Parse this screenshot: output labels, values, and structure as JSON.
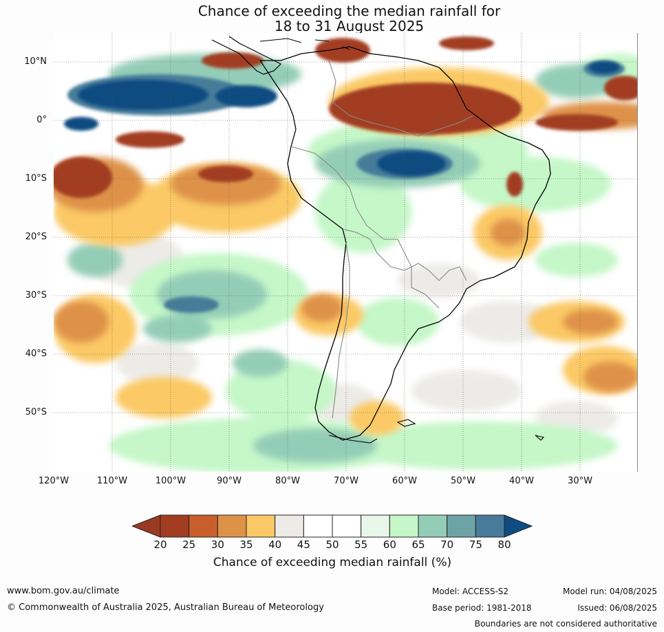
{
  "title": {
    "line1": "Chance of exceeding the median rainfall for",
    "line2": "18 to 31 August 2025"
  },
  "map": {
    "region": "South America and surrounding oceans",
    "latitude_labels": [
      "10°N",
      "0°",
      "10°S",
      "20°S",
      "30°S",
      "40°S",
      "50°S"
    ],
    "longitude_labels": [
      "120°W",
      "110°W",
      "100°W",
      "90°W",
      "80°W",
      "70°W",
      "60°W",
      "50°W",
      "40°W",
      "30°W"
    ],
    "lon_range": [
      -120,
      -20
    ],
    "lat_range": [
      -60,
      15
    ],
    "gridlines": true
  },
  "colorbar": {
    "title": "Chance of exceeding median rainfall (%)",
    "ticks": [
      "20",
      "25",
      "30",
      "35",
      "40",
      "45",
      "50",
      "55",
      "60",
      "65",
      "70",
      "75",
      "80"
    ],
    "colors": [
      "#a23d21",
      "#c9602c",
      "#de9248",
      "#fbc965",
      "#ecebe7",
      "#ffffff",
      "#ffffff",
      "#e9f6ea",
      "#c5f7c8",
      "#94cdb7",
      "#6ea3a6",
      "#477b99"
    ],
    "under_color": "#993a22",
    "over_color": "#0f4c81"
  },
  "footer": {
    "website": "www.bom.gov.au/climate",
    "copyright": "© Commonwealth of Australia 2025, Australian Bureau of Meteorology",
    "model": "Model: ACCESS-S2",
    "base_period": "Base period: 1981-2018",
    "model_run": "Model run: 04/08/2025",
    "issued": "Issued: 06/08/2025",
    "disclaimer": "Boundaries are not considered authoritative"
  }
}
